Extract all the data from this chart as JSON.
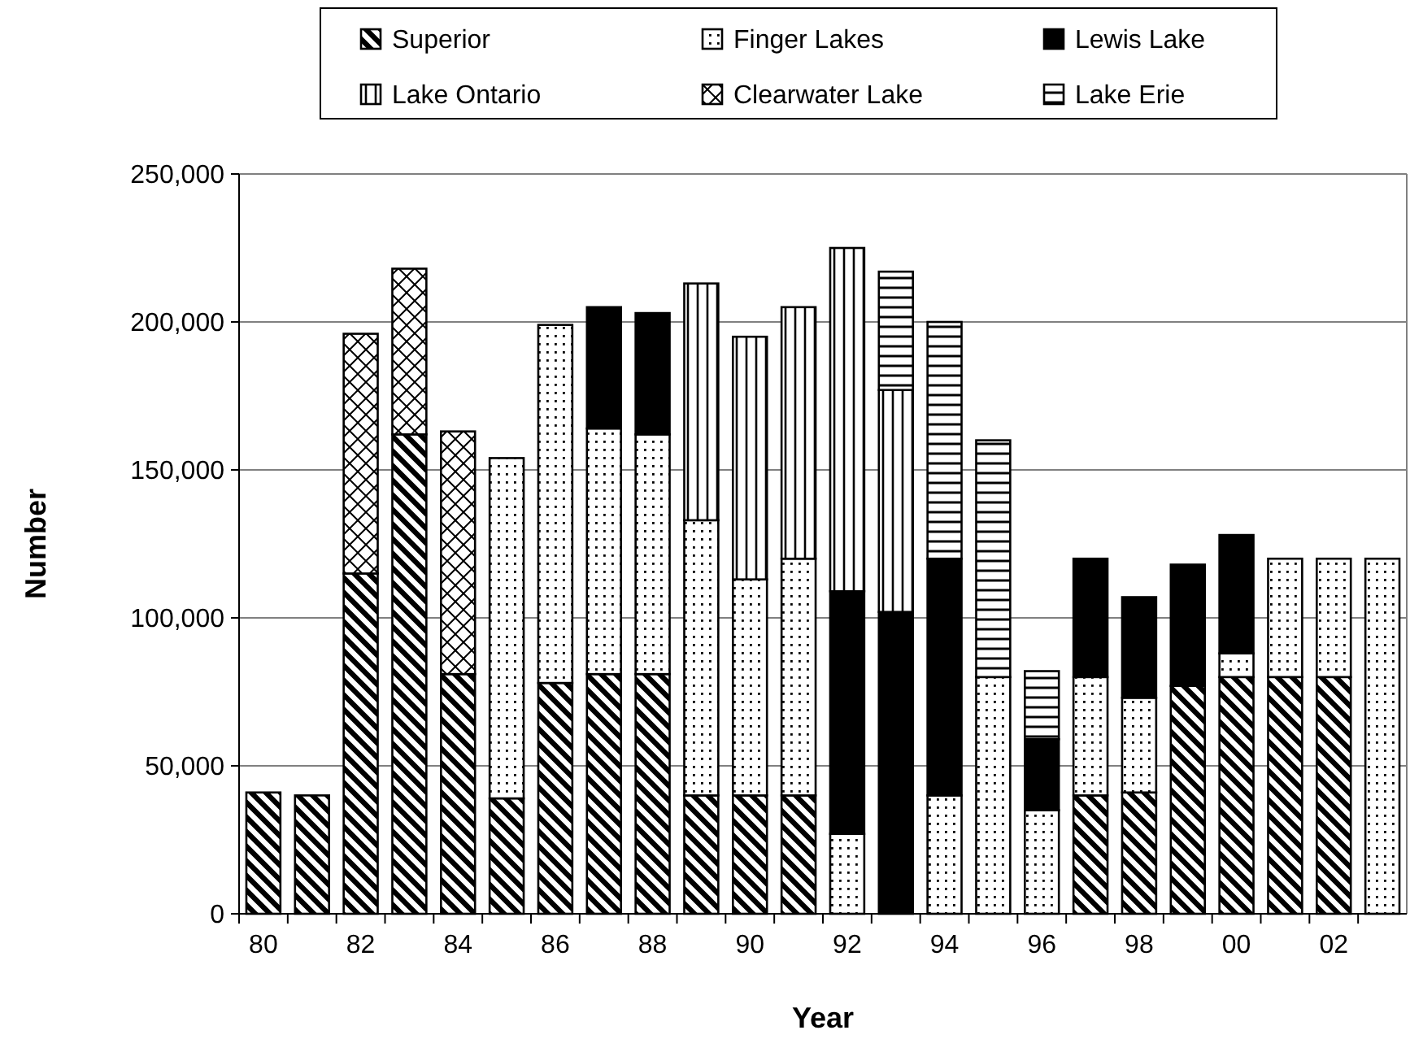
{
  "chart_data": {
    "type": "bar",
    "stacked": true,
    "xlabel": "Year",
    "ylabel": "Number",
    "categories": [
      "80",
      null,
      "82",
      null,
      "84",
      null,
      "86",
      null,
      "88",
      null,
      "90",
      null,
      "92",
      null,
      "94",
      null,
      "96",
      null,
      "98",
      null,
      "00",
      null,
      "02",
      null
    ],
    "series": [
      {
        "name": "Superior",
        "color": "#000000",
        "values": [
          41000,
          40000,
          115000,
          162000,
          81000,
          39000,
          78000,
          81000,
          81000,
          40000,
          40000,
          40000,
          null,
          null,
          null,
          null,
          null,
          40000,
          41000,
          77000,
          80000,
          80000,
          80000,
          null
        ]
      },
      {
        "name": "Finger Lakes",
        "color": "#000000",
        "values": [
          null,
          null,
          null,
          null,
          null,
          115000,
          121000,
          83000,
          81000,
          93000,
          73000,
          80000,
          27000,
          null,
          40000,
          80000,
          35000,
          40000,
          32000,
          null,
          8000,
          40000,
          40000,
          120000
        ]
      },
      {
        "name": "Lewis Lake",
        "color": "#000000",
        "values": [
          null,
          null,
          null,
          null,
          null,
          null,
          null,
          41000,
          41000,
          null,
          null,
          null,
          82000,
          102000,
          80000,
          null,
          24000,
          40000,
          34000,
          41000,
          40000,
          null,
          null,
          null
        ]
      },
      {
        "name": "Lake Ontario",
        "color": "#000000",
        "values": [
          null,
          null,
          null,
          null,
          null,
          null,
          null,
          null,
          null,
          80000,
          82000,
          85000,
          116000,
          75000,
          null,
          null,
          null,
          null,
          null,
          null,
          null,
          null,
          null,
          null
        ]
      },
      {
        "name": "Clearwater Lake",
        "color": "#000000",
        "values": [
          null,
          null,
          81000,
          56000,
          82000,
          null,
          null,
          null,
          null,
          null,
          null,
          null,
          null,
          null,
          null,
          null,
          null,
          null,
          null,
          null,
          null,
          null,
          null,
          null
        ]
      },
      {
        "name": "Lake Erie",
        "color": "#000000",
        "values": [
          null,
          null,
          null,
          null,
          null,
          null,
          null,
          null,
          null,
          null,
          null,
          null,
          null,
          40000,
          80000,
          80000,
          23000,
          null,
          null,
          null,
          null,
          null,
          null,
          null
        ]
      }
    ],
    "ylim": [
      0,
      250000
    ],
    "yticks": [
      0,
      {
        "value": 50000,
        "label": "50,000"
      },
      {
        "value": 100000,
        "label": "100,000"
      },
      {
        "value": 150000,
        "label": "150,000"
      },
      {
        "value": 200000,
        "label": "200,000"
      },
      {
        "value": 250000,
        "label": "250,000"
      }
    ],
    "grid": "y",
    "legend": "top"
  }
}
